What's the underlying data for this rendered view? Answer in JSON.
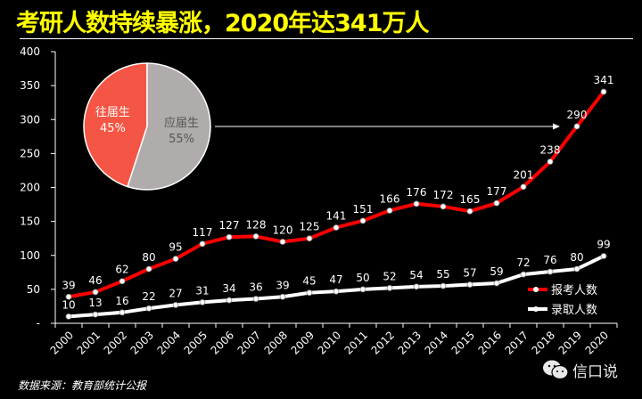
{
  "title": "考研人数持续暴涨，2020年达341万人",
  "source": "数据来源：教育部统计公报",
  "watermark": "信口说",
  "chart_data": {
    "type": "line",
    "title": "考研人数持续暴涨，2020年达341万人",
    "xlabel": "",
    "ylabel": "",
    "ylim": [
      0,
      400
    ],
    "yticks": [
      0,
      50,
      100,
      150,
      200,
      250,
      300,
      350,
      400
    ],
    "ytick_labels": [
      "-",
      "50",
      "100",
      "150",
      "200",
      "250",
      "300",
      "350",
      "400"
    ],
    "grid": false,
    "legend_position": "bottom-right",
    "categories": [
      "2000",
      "2001",
      "2002",
      "2003",
      "2004",
      "2005",
      "2006",
      "2007",
      "2008",
      "2009",
      "2010",
      "2011",
      "2012",
      "2013",
      "2014",
      "2015",
      "2016",
      "2017",
      "2018",
      "2019",
      "2020"
    ],
    "series": [
      {
        "name": "报考人数",
        "color": "#ff0000",
        "values": [
          39,
          46,
          62,
          80,
          95,
          117,
          127,
          128,
          120,
          125,
          141,
          151,
          166,
          176,
          172,
          165,
          177,
          201,
          238,
          290,
          341
        ]
      },
      {
        "name": "录取人数",
        "color": "#ffffff",
        "values": [
          10,
          13,
          16,
          22,
          27,
          31,
          34,
          36,
          39,
          45,
          47,
          50,
          52,
          54,
          55,
          57,
          59,
          72,
          76,
          80,
          99
        ]
      }
    ],
    "inset_pie": {
      "type": "pie",
      "slices": [
        {
          "label": "往届生",
          "value": 45,
          "display": "45%",
          "color": "#f55544",
          "text_color": "#ffffff"
        },
        {
          "label": "应届生",
          "value": 55,
          "display": "55%",
          "color": "#b0acab",
          "text_color": "#555555"
        }
      ]
    }
  }
}
